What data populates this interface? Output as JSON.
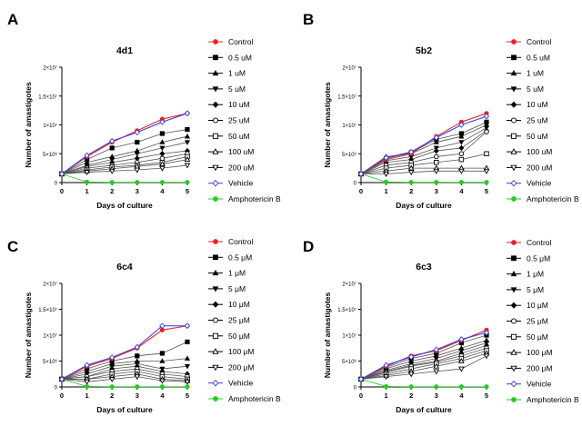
{
  "x_tick_labels": [
    "0",
    "1",
    "2",
    "3",
    "4",
    "5"
  ],
  "y_tick_labels": [
    "0",
    "5×10⁶",
    "1×10⁷",
    "1.5×10⁷",
    "2×10⁷"
  ],
  "legend_markers": [
    "circle",
    "square",
    "triangle-up",
    "triangle-down",
    "diamond",
    "circle-open",
    "square-open",
    "triangle-up-open",
    "triangle-down-open",
    "diamond-open",
    "circle"
  ],
  "colors": {
    "control": "#e8222a",
    "vehicle": "#3a3fd8",
    "amphotericin": "#22cc22",
    "dose": "#000000"
  },
  "chart_data": [
    {
      "panel": "A",
      "type": "line",
      "title": "4d1",
      "xlabel": "Days of culture",
      "ylabel": "Number of amastigotes",
      "x": [
        0,
        1,
        2,
        3,
        4,
        5
      ],
      "xlim": [
        0,
        5
      ],
      "ylim": [
        0,
        20000000
      ],
      "legend_position": "right",
      "grid": false,
      "series": [
        {
          "name": "Control",
          "values": [
            1500000,
            4500000,
            7000000,
            9000000,
            11000000,
            12000000
          ]
        },
        {
          "name": "0.5 uM",
          "values": [
            1500000,
            4000000,
            6000000,
            7000000,
            8500000,
            9200000
          ]
        },
        {
          "name": "1 uM",
          "values": [
            1500000,
            3500000,
            4500000,
            5500000,
            7000000,
            8000000
          ]
        },
        {
          "name": "5 uM",
          "values": [
            1500000,
            3000000,
            4000000,
            5000000,
            6000000,
            7000000
          ]
        },
        {
          "name": "10 uM",
          "values": [
            1500000,
            2800000,
            3500000,
            4200000,
            5000000,
            5500000
          ]
        },
        {
          "name": "25 uM",
          "values": [
            1500000,
            2500000,
            3000000,
            3500000,
            4200000,
            5000000
          ]
        },
        {
          "name": "50 uM",
          "values": [
            1500000,
            2200000,
            2700000,
            3000000,
            3500000,
            4500000
          ]
        },
        {
          "name": "100 uM",
          "values": [
            1500000,
            2000000,
            2400000,
            2800000,
            3200000,
            4000000
          ]
        },
        {
          "name": "200 uM",
          "values": [
            1500000,
            1800000,
            2000000,
            2200000,
            2500000,
            3000000
          ]
        },
        {
          "name": "Vehicle",
          "values": [
            1500000,
            4700000,
            7200000,
            8700000,
            10500000,
            12000000
          ]
        },
        {
          "name": "Amphotericin B",
          "values": [
            1500000,
            100000,
            50000,
            50000,
            50000,
            50000
          ]
        }
      ]
    },
    {
      "panel": "B",
      "type": "line",
      "title": "5b2",
      "xlabel": "Days of culture",
      "ylabel": "Number of amastigotes",
      "x": [
        0,
        1,
        2,
        3,
        4,
        5
      ],
      "xlim": [
        0,
        5
      ],
      "ylim": [
        0,
        20000000
      ],
      "legend_position": "right",
      "grid": false,
      "series": [
        {
          "name": "Control",
          "values": [
            1500000,
            4000000,
            5000000,
            8000000,
            10500000,
            12000000
          ]
        },
        {
          "name": "0.5 uM",
          "values": [
            1500000,
            4200000,
            5200000,
            7500000,
            8500000,
            10500000
          ]
        },
        {
          "name": "1 uM",
          "values": [
            1500000,
            4500000,
            5000000,
            7000000,
            8000000,
            10000000
          ]
        },
        {
          "name": "5 uM",
          "values": [
            1500000,
            3800000,
            4500000,
            6000000,
            7000000,
            9500000
          ]
        },
        {
          "name": "10 uM",
          "values": [
            1500000,
            3500000,
            4000000,
            5500000,
            6000000,
            9000000
          ]
        },
        {
          "name": "25 uM",
          "values": [
            1500000,
            3000000,
            3500000,
            4500000,
            5000000,
            8800000
          ]
        },
        {
          "name": "50 uM",
          "values": [
            1500000,
            2500000,
            3000000,
            3500000,
            4000000,
            5000000
          ]
        },
        {
          "name": "100 uM",
          "values": [
            1500000,
            2000000,
            2500000,
            2500000,
            2500000,
            2500000
          ]
        },
        {
          "name": "200 uM",
          "values": [
            1500000,
            1500000,
            1800000,
            2000000,
            2000000,
            2000000
          ]
        },
        {
          "name": "Vehicle",
          "values": [
            1500000,
            4300000,
            5300000,
            7800000,
            10000000,
            11500000
          ]
        },
        {
          "name": "Amphotericin B",
          "values": [
            1500000,
            100000,
            50000,
            50000,
            50000,
            50000
          ]
        }
      ]
    },
    {
      "panel": "C",
      "type": "line",
      "title": "6c4",
      "xlabel": "Days of culture",
      "ylabel": "Number of amastigotes",
      "x": [
        0,
        1,
        2,
        3,
        4,
        5
      ],
      "xlim": [
        0,
        5
      ],
      "ylim": [
        0,
        20000000
      ],
      "legend_position": "right",
      "grid": false,
      "series": [
        {
          "name": "Control",
          "values": [
            1500000,
            4000000,
            5500000,
            7500000,
            11000000,
            11800000
          ]
        },
        {
          "name": "0.5 μM",
          "values": [
            1500000,
            3500000,
            5000000,
            6000000,
            6500000,
            8700000
          ]
        },
        {
          "name": "1 μM",
          "values": [
            1500000,
            3000000,
            4500000,
            5000000,
            5000000,
            5500000
          ]
        },
        {
          "name": "5 μM",
          "values": [
            1500000,
            2500000,
            4000000,
            4500000,
            3500000,
            4000000
          ]
        },
        {
          "name": "10 μM",
          "values": [
            1500000,
            2000000,
            3500000,
            4000000,
            3000000,
            2500000
          ]
        },
        {
          "name": "25 μM",
          "values": [
            1500000,
            2000000,
            3000000,
            3500000,
            2500000,
            2000000
          ]
        },
        {
          "name": "50 μM",
          "values": [
            1500000,
            1500000,
            2500000,
            3000000,
            2000000,
            1500000
          ]
        },
        {
          "name": "100 μM",
          "values": [
            1500000,
            1500000,
            2000000,
            2500000,
            1500000,
            1200000
          ]
        },
        {
          "name": "200 μM",
          "values": [
            1500000,
            1000000,
            1500000,
            2000000,
            1200000,
            1000000
          ]
        },
        {
          "name": "Vehicle",
          "values": [
            1500000,
            4200000,
            5700000,
            7700000,
            11800000,
            11800000
          ]
        },
        {
          "name": "Amphotericin B",
          "values": [
            1500000,
            100000,
            50000,
            50000,
            50000,
            50000
          ]
        }
      ]
    },
    {
      "panel": "D",
      "type": "line",
      "title": "6c3",
      "xlabel": "Days of culture",
      "ylabel": "Number of amastigotes",
      "x": [
        0,
        1,
        2,
        3,
        4,
        5
      ],
      "xlim": [
        0,
        5
      ],
      "ylim": [
        0,
        20000000
      ],
      "legend_position": "right",
      "grid": false,
      "series": [
        {
          "name": "Control",
          "values": [
            1500000,
            4000000,
            6000000,
            7000000,
            9000000,
            11000000
          ]
        },
        {
          "name": "0.5 μM",
          "values": [
            1500000,
            3800000,
            5500000,
            6500000,
            8500000,
            10000000
          ]
        },
        {
          "name": "1 μM",
          "values": [
            1500000,
            3500000,
            5000000,
            6000000,
            7500000,
            9000000
          ]
        },
        {
          "name": "5 μM",
          "values": [
            1500000,
            3200000,
            4500000,
            5500000,
            7000000,
            8500000
          ]
        },
        {
          "name": "10 μM",
          "values": [
            1500000,
            3000000,
            4200000,
            5000000,
            6500000,
            8000000
          ]
        },
        {
          "name": "25 μM",
          "values": [
            1500000,
            2800000,
            4000000,
            4800000,
            6000000,
            7500000
          ]
        },
        {
          "name": "50 μM",
          "values": [
            1500000,
            2500000,
            3500000,
            4500000,
            5500000,
            7000000
          ]
        },
        {
          "name": "100 μM",
          "values": [
            1500000,
            2200000,
            3000000,
            4000000,
            5000000,
            6500000
          ]
        },
        {
          "name": "200 μM",
          "values": [
            1500000,
            2000000,
            2500000,
            3000000,
            3500000,
            6000000
          ]
        },
        {
          "name": "Vehicle",
          "values": [
            1500000,
            4200000,
            5800000,
            7200000,
            9200000,
            10500000
          ]
        },
        {
          "name": "Amphotericin B",
          "values": [
            1500000,
            100000,
            50000,
            50000,
            50000,
            50000
          ]
        }
      ]
    }
  ]
}
